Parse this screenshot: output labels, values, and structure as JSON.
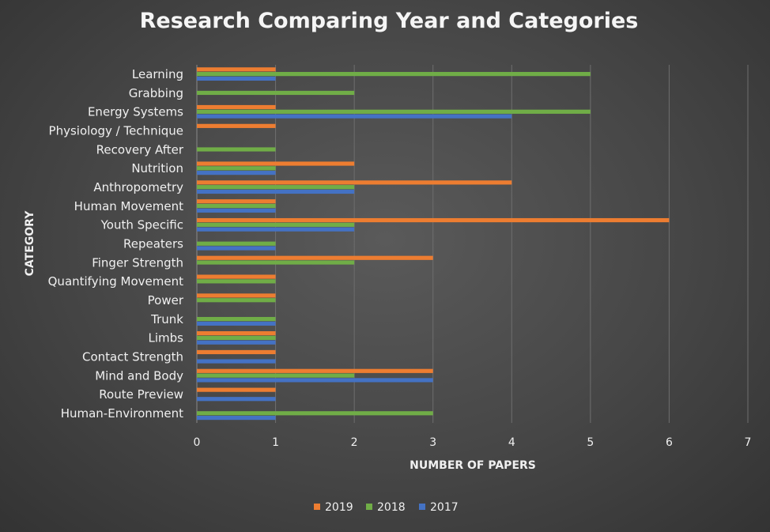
{
  "chart_data": {
    "type": "bar",
    "orientation": "horizontal",
    "title": "Research Comparing Year and Categories",
    "xlabel": "NUMBER OF PAPERS",
    "ylabel": "CATEGORY",
    "xlim": [
      0,
      7
    ],
    "xticks": [
      "0",
      "1",
      "2",
      "3",
      "4",
      "5",
      "6",
      "7"
    ],
    "grid": true,
    "legend_position": "bottom",
    "categories": [
      "Learning",
      "Grabbing",
      "Energy Systems",
      "Physiology / Technique",
      "Recovery After",
      "Nutrition",
      "Anthropometry",
      "Human Movement",
      "Youth Specific",
      "Repeaters",
      "Finger Strength",
      "Quantifying Movement",
      "Power",
      "Trunk",
      "Limbs",
      "Contact Strength",
      "Mind and Body",
      "Route Preview",
      "Human-Environment"
    ],
    "series": [
      {
        "name": "2019",
        "color": "#ED7D31",
        "values": [
          1,
          0,
          1,
          1,
          0,
          2,
          4,
          1,
          6,
          0,
          3,
          1,
          1,
          0,
          1,
          1,
          3,
          1,
          0
        ]
      },
      {
        "name": "2018",
        "color": "#70AD47",
        "values": [
          5,
          2,
          5,
          0,
          1,
          1,
          2,
          1,
          2,
          1,
          2,
          1,
          1,
          1,
          1,
          0,
          2,
          0,
          3
        ]
      },
      {
        "name": "2017",
        "color": "#4472C4",
        "values": [
          1,
          0,
          4,
          0,
          0,
          1,
          2,
          1,
          2,
          1,
          0,
          0,
          0,
          1,
          1,
          1,
          3,
          1,
          1
        ]
      }
    ]
  }
}
